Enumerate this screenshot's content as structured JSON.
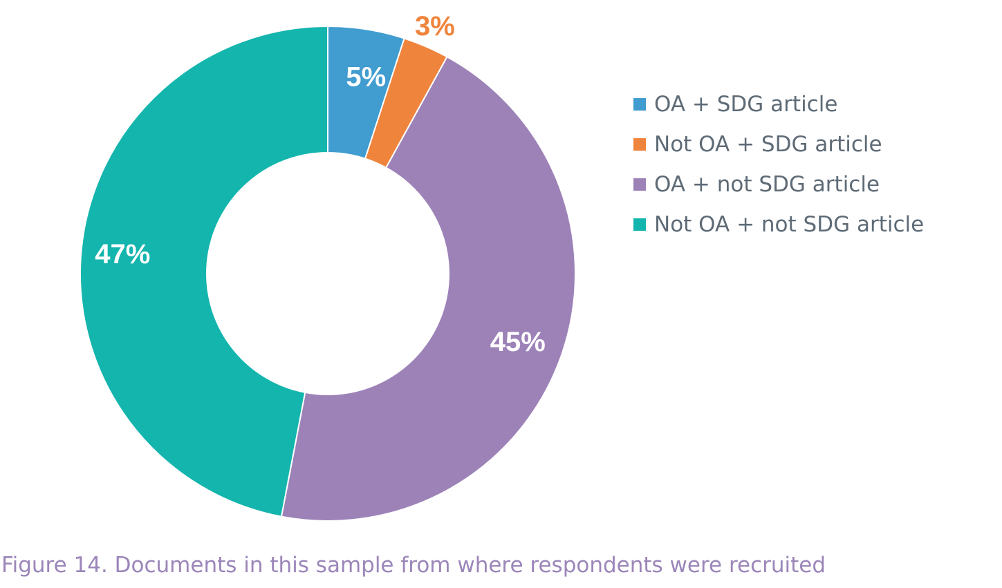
{
  "chart_data": {
    "type": "pie",
    "donut": true,
    "categories": [
      "OA + SDG article",
      "Not OA + SDG article",
      "OA + not SDG article",
      "Not OA + not SDG article"
    ],
    "values": [
      5,
      3,
      45,
      47
    ],
    "data_labels": [
      "5%",
      "3%",
      "45%",
      "47%"
    ],
    "colors": [
      "#419ccf",
      "#ef843c",
      "#9d82b8",
      "#13b5ad"
    ],
    "label_colors": [
      "#ffffff",
      "#ef843c",
      "#ffffff",
      "#ffffff"
    ],
    "legend_position": "right",
    "caption": "Figure 14. Documents in this sample from where respondents were recruited"
  }
}
